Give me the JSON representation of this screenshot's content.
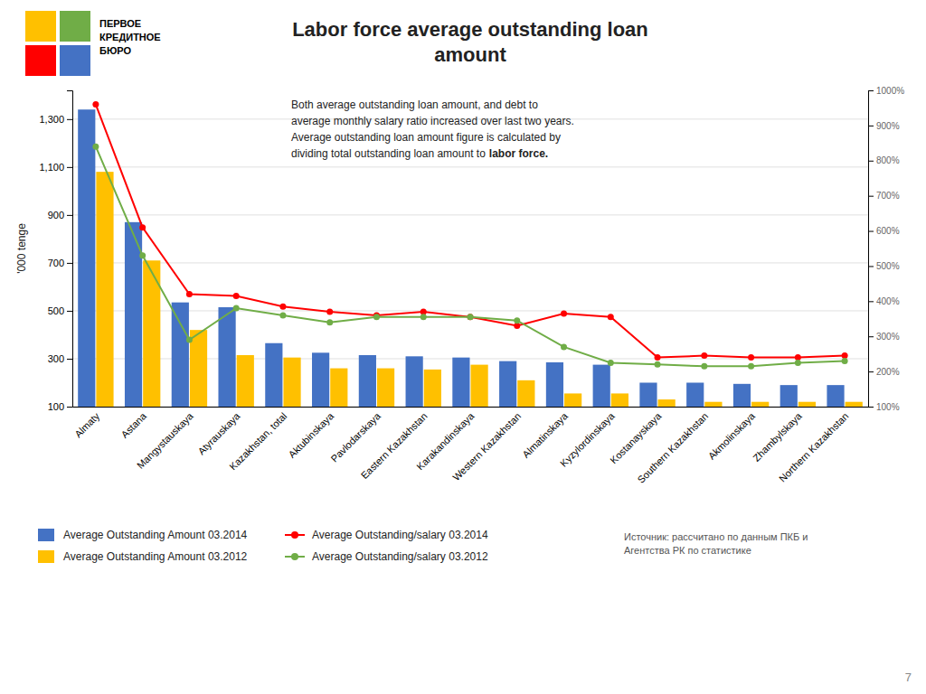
{
  "chart_data": {
    "type": "bar",
    "title": "Labor force average outstanding loan\namount",
    "y_label": "'000 tenge",
    "categories": [
      "Almaty",
      "Astana",
      "Mangystauskaya",
      "Atyrauskaya",
      "Kazakhstan, total",
      "Aktubinskaya",
      "Pavlodarskaya",
      "Eastern Kazakhstan",
      "Karakandinskaya",
      "Western Kazakhstan",
      "Almatinskaya",
      "Kyzylordinskaya",
      "Kostanayskaya",
      "Southern Kazakhstan",
      "Akmolinskaya",
      "Zhambylskaya",
      "Northern Kazakhstan"
    ],
    "series": [
      {
        "name": "Average Outstanding Amount 03.2014",
        "type": "bar",
        "color": "#4472C4",
        "values": [
          1340,
          870,
          535,
          515,
          365,
          325,
          315,
          310,
          305,
          290,
          285,
          275,
          200,
          200,
          195,
          190,
          190
        ]
      },
      {
        "name": "Average Outstanding Amount 03.2012",
        "type": "bar",
        "color": "#FFC000",
        "values": [
          1080,
          710,
          420,
          315,
          305,
          260,
          260,
          255,
          275,
          210,
          155,
          155,
          130,
          120,
          120,
          120,
          120
        ]
      },
      {
        "name": "Average Outstanding/salary 03.2014",
        "type": "line",
        "axis": "y2",
        "color": "#FF0000",
        "marker": "circle",
        "values": [
          960,
          610,
          420,
          415,
          385,
          370,
          360,
          370,
          355,
          330,
          365,
          355,
          240,
          245,
          240,
          240,
          245
        ]
      },
      {
        "name": "Average Outstanding/salary 03.2012",
        "type": "line",
        "axis": "y2",
        "color": "#70AD47",
        "marker": "circle",
        "values": [
          840,
          530,
          290,
          380,
          360,
          340,
          355,
          355,
          355,
          345,
          270,
          225,
          220,
          215,
          215,
          225,
          230
        ]
      }
    ],
    "ylim": [
      100,
      1420
    ],
    "yticks": [
      100,
      300,
      500,
      700,
      900,
      {
        "value": 1100,
        "label": "1,100"
      },
      {
        "value": 1300,
        "label": "1,300"
      }
    ],
    "y2lim": [
      100,
      1000
    ],
    "y2ticks": [
      {
        "value": 100,
        "label": "100%"
      },
      {
        "value": 200,
        "label": "200%"
      },
      {
        "value": 300,
        "label": "300%"
      },
      {
        "value": 400,
        "label": "400%"
      },
      {
        "value": 500,
        "label": "500%"
      },
      {
        "value": 600,
        "label": "600%"
      },
      {
        "value": 700,
        "label": "700%"
      },
      {
        "value": 800,
        "label": "800%"
      },
      {
        "value": 900,
        "label": "900%"
      },
      {
        "value": 1000,
        "label": "1000%"
      }
    ],
    "grid": true,
    "legend": "bottom",
    "annotations": [
      "Both average outstanding loan amount, and debt to",
      "average monthly salary ratio increased over last two years.",
      "Average outstanding loan amount figure is calculated by",
      "dividing total outstanding loan amount to",
      "labor force."
    ],
    "source": "Источник: рассчитано по данным ПКБ и\nАгентства РК по статистике",
    "page_number": "7",
    "logo_text": "ПЕРВОЕ\nКРЕДИТНОЕ\nБЮРО",
    "logo_colors": [
      "#70AD47",
      "#FFC000",
      "#FF0000",
      "#4472C4"
    ]
  }
}
